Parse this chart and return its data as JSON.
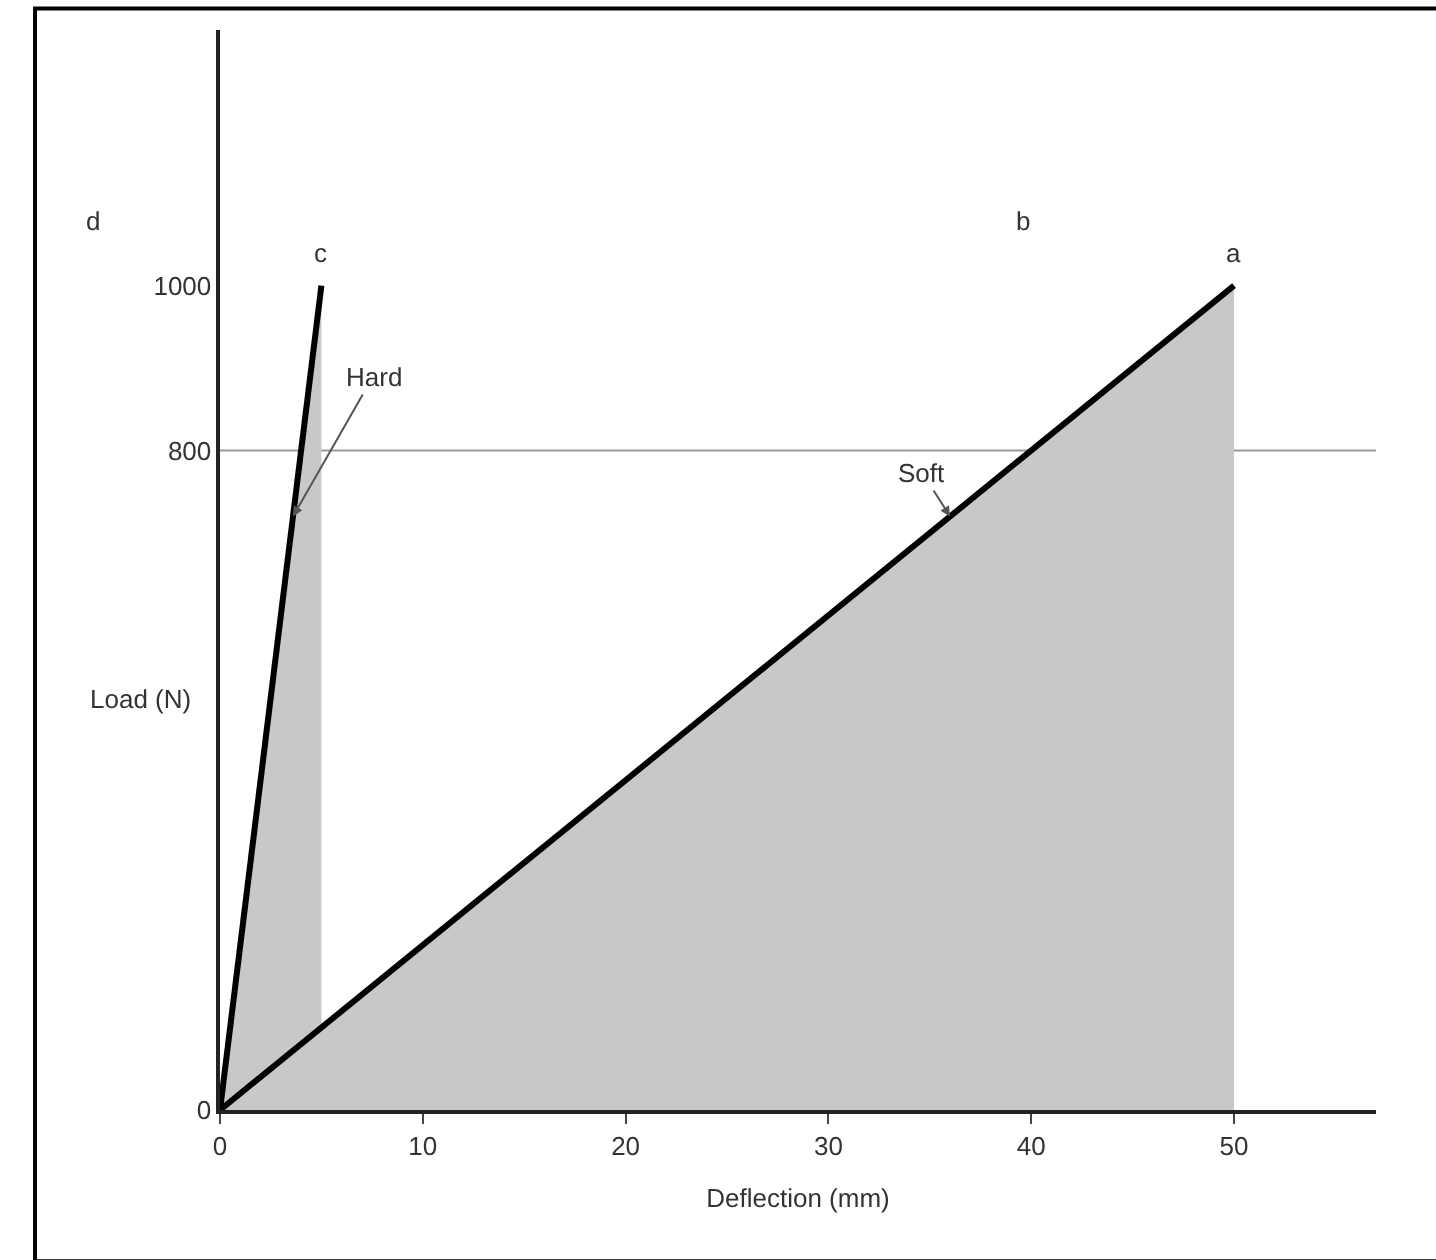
{
  "chart_data": {
    "type": "area",
    "xlabel": "Deflection (mm)",
    "ylabel": "Load (N)",
    "series": [
      {
        "name": "Hard",
        "color": "#000000",
        "x": [
          0,
          5
        ],
        "values": [
          0,
          1000
        ]
      },
      {
        "name": "Soft",
        "color": "#000000",
        "x": [
          0,
          50
        ],
        "values": [
          0,
          1000
        ]
      }
    ],
    "xlim": [
      0,
      57
    ],
    "ylim": [
      0,
      1310
    ],
    "xticks": [
      0,
      10,
      20,
      30,
      40,
      50
    ],
    "yticks": [
      0,
      800,
      1000
    ],
    "ref_lines": [
      {
        "axis": "y",
        "value": 800,
        "label": null,
        "color": "#999999"
      }
    ],
    "annotations": [
      {
        "text": "a",
        "x": 50,
        "y": 1000
      },
      "b",
      {
        "text": "c",
        "x": 5,
        "y": 1000
      },
      "d"
    ],
    "grid": false,
    "legend": false
  }
}
